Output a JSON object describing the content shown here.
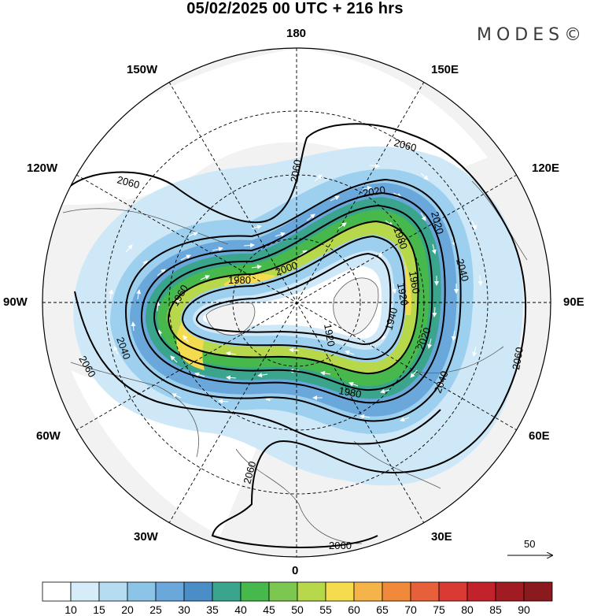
{
  "header": {
    "title": "05/02/2025  00 UTC  + 216 hrs",
    "brand": "MODES©"
  },
  "longitude_labels": {
    "top": "180",
    "bottom": "0",
    "left": "90W",
    "right": "90E",
    "upper_left": "150W",
    "upper_right": "150E",
    "mid_upper_left": "120W",
    "mid_upper_right": "120E",
    "mid_lower_left": "60W",
    "mid_lower_right": "60E",
    "lower_left": "30W",
    "lower_right": "30E"
  },
  "contour_labels": {
    "c2060_a": "2060",
    "c2060_b": "2060",
    "c2060_c": "2060",
    "c2060_d": "2060",
    "c2060_e": "2060",
    "c2060_f": "2060",
    "c2060_g": "2060",
    "c2040_a": "2040",
    "c2040_b": "2040",
    "c2040_c": "2040",
    "c2020_a": "2020",
    "c2020_b": "2020",
    "c2020_c": "2020",
    "c2000_a": "2000",
    "c1980_a": "1980",
    "c1980_b": "1980",
    "c1960_a": "1960",
    "c1940_a": "1940",
    "c1920_a": "1920",
    "c1920_b": "1920",
    "c1980_c": "1980",
    "c1960_b": "1960"
  },
  "vector_reference": {
    "label": "50"
  },
  "colorbar": {
    "labels": [
      "10",
      "15",
      "20",
      "25",
      "30",
      "35",
      "40",
      "45",
      "50",
      "55",
      "60",
      "65",
      "70",
      "75",
      "80",
      "85",
      "90"
    ],
    "colors": [
      "#ffffff",
      "#d6edf9",
      "#b6dcf2",
      "#8cc4e8",
      "#6aa8dc",
      "#4b8dc6",
      "#3aa58c",
      "#46b84c",
      "#7cc750",
      "#b8d84c",
      "#f5dc4f",
      "#f5b449",
      "#f08a3a",
      "#e6603a",
      "#d93a33",
      "#c2232a",
      "#a01b22",
      "#8a1a1e"
    ]
  }
}
